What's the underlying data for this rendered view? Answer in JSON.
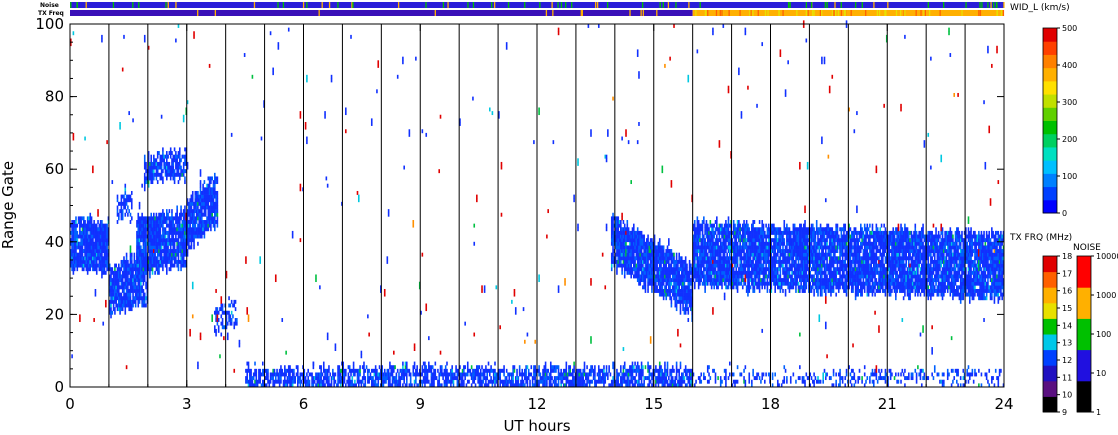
{
  "chart_data": {
    "type": "heatmap",
    "xlabel": "UT hours",
    "ylabel": "Range Gate",
    "xlim": [
      0,
      24
    ],
    "ylim": [
      0,
      100
    ],
    "x_ticks": [
      0,
      3,
      6,
      9,
      12,
      15,
      18,
      21,
      24
    ],
    "y_ticks": [
      0,
      20,
      40,
      60,
      80,
      100
    ],
    "hour_gridlines": [
      1,
      2,
      3,
      4,
      5,
      6,
      7,
      8,
      9,
      10,
      11,
      12,
      13,
      14,
      15,
      16,
      17,
      18,
      19,
      20,
      21,
      22,
      23
    ],
    "top_strips": {
      "noise_label": "Noise",
      "txfreq_label": "TX Freq",
      "noise_color": "#2a1ed8",
      "txfreq_early_color": "#3a10b8",
      "txfreq_late_color": "#ffb000",
      "txfreq_switch_hour": 16
    },
    "echo_bands": [
      {
        "start": 0.0,
        "end": 1.0,
        "center_from": 39,
        "center_to": 38,
        "half_width": 6,
        "density": 0.95
      },
      {
        "start": 1.0,
        "end": 2.0,
        "center_from": 26,
        "center_to": 30,
        "half_width": 6,
        "density": 0.9
      },
      {
        "start": 1.2,
        "end": 1.6,
        "center_from": 49,
        "center_to": 50,
        "half_width": 3,
        "density": 0.7
      },
      {
        "start": 1.7,
        "end": 3.0,
        "center_from": 38,
        "center_to": 41,
        "half_width": 7,
        "density": 0.9
      },
      {
        "start": 3.0,
        "end": 3.8,
        "center_from": 44,
        "center_to": 52,
        "half_width": 6,
        "density": 0.9
      },
      {
        "start": 1.9,
        "end": 3.0,
        "center_from": 59,
        "center_to": 61,
        "half_width": 3,
        "density": 0.75
      },
      {
        "start": 3.7,
        "end": 4.3,
        "center_from": 18,
        "center_to": 20,
        "half_width": 3,
        "density": 0.45
      },
      {
        "start": 13.9,
        "end": 16.0,
        "center_from": 40,
        "center_to": 26,
        "half_width": 6,
        "density": 0.95
      },
      {
        "start": 16.0,
        "end": 24.0,
        "center_from": 36,
        "center_to": 33,
        "half_width": 8,
        "density": 0.9
      },
      {
        "start": 4.5,
        "end": 16.0,
        "center_from": 2,
        "center_to": 2,
        "half_width": 2,
        "density": 0.75
      },
      {
        "start": 16.0,
        "end": 24.0,
        "center_from": 2,
        "center_to": 2,
        "half_width": 1,
        "density": 0.35
      }
    ],
    "scatter_density": 0.0045,
    "colorbars": [
      {
        "title": "WID_L (km/s)",
        "ticks": [
          "0",
          "100",
          "200",
          "300",
          "400",
          "500"
        ],
        "colors": [
          "#0000ff",
          "#0040ff",
          "#0080ff",
          "#00c0ff",
          "#00e0c0",
          "#00d060",
          "#00c000",
          "#60d000",
          "#c0e000",
          "#ffe000",
          "#ffb000",
          "#ff8000",
          "#ff4000",
          "#e00000"
        ]
      },
      {
        "title": "TX FRQ (MHz)",
        "ticks": [
          "9",
          "10",
          "11",
          "12",
          "13",
          "14",
          "15",
          "16",
          "17",
          "18"
        ],
        "colors": [
          "#000000",
          "#5a1080",
          "#2010c0",
          "#0040ff",
          "#00c8e8",
          "#00c000",
          "#e8e000",
          "#ffb000",
          "#ff6000",
          "#e00000"
        ]
      },
      {
        "title": "NOISE",
        "ticks": [
          "1",
          "10",
          "100",
          "1000",
          "10000"
        ],
        "colors": [
          "#000000",
          "#2010e0",
          "#00c000",
          "#ffb000",
          "#ff0000"
        ]
      }
    ],
    "palette": {
      "blue": "#1030ff",
      "mid_blue": "#0060ff",
      "cyan": "#00c8e0",
      "green": "#00c040",
      "yellow": "#e8e000",
      "orange": "#ff9000",
      "red": "#e00000"
    }
  }
}
